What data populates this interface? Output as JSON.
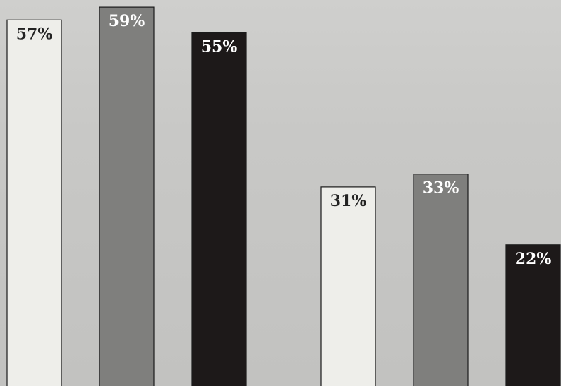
{
  "chart_data": {
    "type": "bar",
    "groups": [
      {
        "bars": [
          {
            "value": 57,
            "label": "57%",
            "color": "#eeeeea",
            "label_color": "#222222"
          },
          {
            "value": 59,
            "label": "59%",
            "color": "#7f7f7d",
            "label_color": "#ffffff"
          },
          {
            "value": 55,
            "label": "55%",
            "color": "#1d1919",
            "label_color": "#ffffff"
          }
        ]
      },
      {
        "bars": [
          {
            "value": 31,
            "label": "31%",
            "color": "#eeeeea",
            "label_color": "#222222"
          },
          {
            "value": 33,
            "label": "33%",
            "color": "#7f7f7d",
            "label_color": "#ffffff"
          },
          {
            "value": 22,
            "label": "22%",
            "color": "#1d1919",
            "label_color": "#ffffff"
          }
        ]
      }
    ],
    "value_unit": "%",
    "ylim": [
      0,
      60
    ],
    "grid": false,
    "legend": "none",
    "title": "",
    "xlabel": "",
    "ylabel": ""
  }
}
